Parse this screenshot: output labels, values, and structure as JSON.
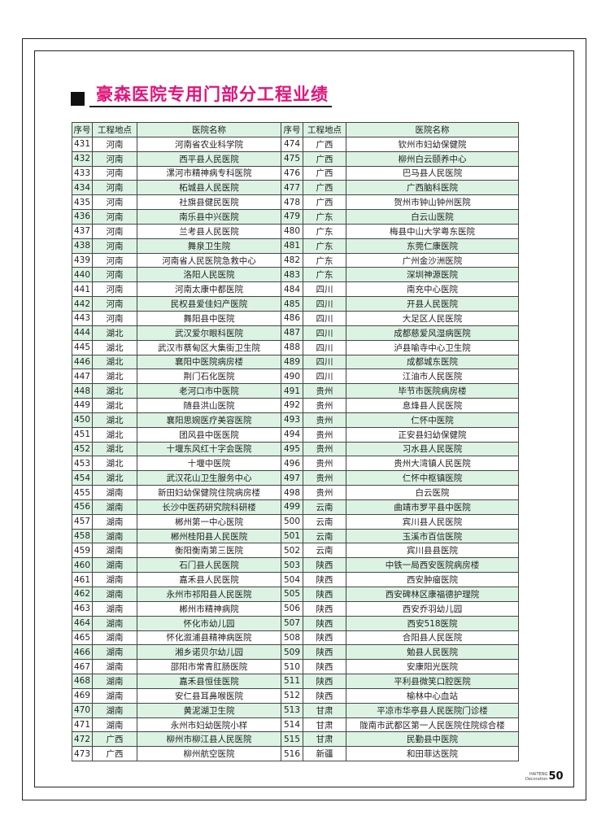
{
  "title": "豪森医院专用门部分工程业绩",
  "colors": {
    "title": "#e0157a",
    "row_alt": "#dcf3e4"
  },
  "table": {
    "headers": [
      "序号",
      "工程地点",
      "医院名称",
      "序号",
      "工程地点",
      "医院名称"
    ],
    "rows": [
      [
        "431",
        "河南",
        "河南省农业科学院",
        "474",
        "广西",
        "钦州市妇幼保健院"
      ],
      [
        "432",
        "河南",
        "西平县人民医院",
        "475",
        "广西",
        "柳州白云颐养中心"
      ],
      [
        "433",
        "河南",
        "漯河市精神病专科医院",
        "476",
        "广西",
        "巴马县人民医院"
      ],
      [
        "434",
        "河南",
        "柘城县人民医院",
        "477",
        "广西",
        "广西脑科医院"
      ],
      [
        "435",
        "河南",
        "社旗县健民医院",
        "478",
        "广西",
        "贺州市钟山钟州医院"
      ],
      [
        "436",
        "河南",
        "南乐县中兴医院",
        "479",
        "广东",
        "白云山医院"
      ],
      [
        "437",
        "河南",
        "兰考县人民医院",
        "480",
        "广东",
        "梅县中山大学粤东医院"
      ],
      [
        "438",
        "河南",
        "舞泉卫生院",
        "481",
        "广东",
        "东莞仁康医院"
      ],
      [
        "439",
        "河南",
        "河南省人民医院急救中心",
        "482",
        "广东",
        "广州金沙洲医院"
      ],
      [
        "440",
        "河南",
        "洛阳人民医院",
        "483",
        "广东",
        "深圳神源医院"
      ],
      [
        "441",
        "河南",
        "河南太康中都医院",
        "484",
        "四川",
        "南充中心医院"
      ],
      [
        "442",
        "河南",
        "民权县爱佳妇产医院",
        "485",
        "四川",
        "开县人民医院"
      ],
      [
        "443",
        "河南",
        "舞阳县中医院",
        "486",
        "四川",
        "大足区人民医院"
      ],
      [
        "444",
        "湖北",
        "武汉爱尔眼科医院",
        "487",
        "四川",
        "成都慈爱风湿病医院"
      ],
      [
        "445",
        "湖北",
        "武汉市蔡甸区大集街卫生院",
        "488",
        "四川",
        "泸县喻寺中心卫生院"
      ],
      [
        "446",
        "湖北",
        "襄阳中医院病房楼",
        "489",
        "四川",
        "成都城东医院"
      ],
      [
        "447",
        "湖北",
        "荆门石化医院",
        "490",
        "四川",
        "江油市人民医院"
      ],
      [
        "448",
        "湖北",
        "老河口市中医院",
        "491",
        "贵州",
        "毕节市医院病房楼"
      ],
      [
        "449",
        "湖北",
        "随县洪山医院",
        "492",
        "贵州",
        "息烽县人民医院"
      ],
      [
        "450",
        "湖北",
        "襄阳思婉医疗美容医院",
        "493",
        "贵州",
        "仁怀中医院"
      ],
      [
        "451",
        "湖北",
        "团风县中医医院",
        "494",
        "贵州",
        "正安县妇幼保健院"
      ],
      [
        "452",
        "湖北",
        "十堰东风红十字会医院",
        "495",
        "贵州",
        "习水县人民医院"
      ],
      [
        "453",
        "湖北",
        "十堰中医院",
        "496",
        "贵州",
        "贵州大湾镇人民医院"
      ],
      [
        "454",
        "湖北",
        "武汉花山卫生服务中心",
        "497",
        "贵州",
        "仁怀中枢镇医院"
      ],
      [
        "455",
        "湖南",
        "新田妇幼保健院住院病房楼",
        "498",
        "贵州",
        "白云医院"
      ],
      [
        "456",
        "湖南",
        "长沙中医药研究院科研楼",
        "499",
        "云南",
        "曲靖市罗平县中医院"
      ],
      [
        "457",
        "湖南",
        "郴州第一中心医院",
        "500",
        "云南",
        "宾川县人民医院"
      ],
      [
        "458",
        "湖南",
        "郴州桂阳县人民医院",
        "501",
        "云南",
        "玉溪市百信医院"
      ],
      [
        "459",
        "湖南",
        "衡阳衡南第三医院",
        "502",
        "云南",
        "宾川县县医院"
      ],
      [
        "460",
        "湖南",
        "石门县人民医院",
        "503",
        "陕西",
        "中铁一局西安医院病房楼"
      ],
      [
        "461",
        "湖南",
        "嘉禾县人民医院",
        "504",
        "陕西",
        "西安肿瘤医院"
      ],
      [
        "462",
        "湖南",
        "永州市祁阳县人民医院",
        "505",
        "陕西",
        "西安碑林区康福德护理院"
      ],
      [
        "463",
        "湖南",
        "郴州市精神病院",
        "506",
        "陕西",
        "西安乔羽幼儿园"
      ],
      [
        "464",
        "湖南",
        "怀化市幼儿园",
        "507",
        "陕西",
        "西安518医院"
      ],
      [
        "465",
        "湖南",
        "怀化溆浦县精神病医院",
        "508",
        "陕西",
        "合阳县人民医院"
      ],
      [
        "466",
        "湖南",
        "湘乡诺贝尔幼儿园",
        "509",
        "陕西",
        "勉县人民医院"
      ],
      [
        "467",
        "湖南",
        "邵阳市常青肛肠医院",
        "510",
        "陕西",
        "安康阳光医院"
      ],
      [
        "468",
        "湖南",
        "嘉禾县恒佳医院",
        "511",
        "陕西",
        "平利县微笑口腔医院"
      ],
      [
        "469",
        "湖南",
        "安仁县耳鼻喉医院",
        "512",
        "陕西",
        "榆林中心血站"
      ],
      [
        "470",
        "湖南",
        "黄泥湖卫生院",
        "513",
        "甘肃",
        "平凉市华亭县人民医院门诊楼"
      ],
      [
        "471",
        "湖南",
        "永州市妇幼医院小样",
        "514",
        "甘肃",
        "陇南市武都区第一人民医院住院综合楼"
      ],
      [
        "472",
        "广西",
        "柳州市柳江县人民医院",
        "515",
        "甘肃",
        "民勤县中医院"
      ],
      [
        "473",
        "广西",
        "柳州航空医院",
        "516",
        "新疆",
        "和田菲达医院"
      ]
    ]
  },
  "footer": {
    "brand_line1": "HAITENG",
    "brand_line2": "Decoration",
    "page_number": "50"
  }
}
